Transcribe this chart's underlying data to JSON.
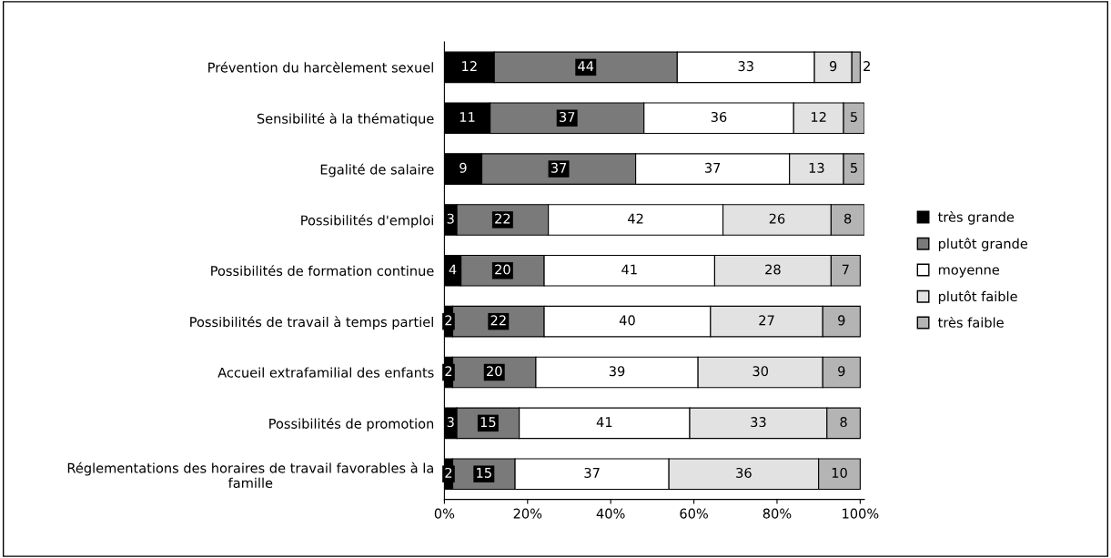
{
  "chart_data": {
    "type": "bar",
    "orientation": "horizontal",
    "stacked": true,
    "data_labels": true,
    "legend": "right",
    "grid": false,
    "categories": [
      "Prévention du harcèlement sexuel",
      "Sensibilité à la thématique",
      "Egalité de salaire",
      "Possibilités d'emploi",
      "Possibilités de formation continue",
      "Possibilités de travail à temps partiel",
      "Accueil extrafamilial des enfants",
      "Possibilités de promotion",
      "Réglementations des horaires de travail favorables à la\nfamille"
    ],
    "series": [
      {
        "name": "très grande",
        "color": "#000000",
        "values": [
          12,
          11,
          9,
          3,
          4,
          2,
          2,
          3,
          2
        ]
      },
      {
        "name": "plutôt grande",
        "color": "#7a7a7a",
        "values": [
          44,
          37,
          37,
          22,
          20,
          22,
          20,
          15,
          15
        ]
      },
      {
        "name": "moyenne",
        "color": "#ffffff",
        "values": [
          33,
          36,
          37,
          42,
          41,
          40,
          39,
          41,
          37
        ]
      },
      {
        "name": "plutôt faible",
        "color": "#e2e2e2",
        "values": [
          9,
          12,
          13,
          26,
          28,
          27,
          30,
          33,
          36
        ]
      },
      {
        "name": "très faible",
        "color": "#b4b4b4",
        "values": [
          2,
          5,
          5,
          8,
          7,
          9,
          9,
          8,
          10
        ]
      }
    ],
    "xlim": [
      0,
      101
    ],
    "xticks": [
      {
        "value": 0,
        "label": "0%"
      },
      {
        "value": 20,
        "label": "20%"
      },
      {
        "value": 40,
        "label": "40%"
      },
      {
        "value": 60,
        "label": "60%"
      },
      {
        "value": 80,
        "label": "80%"
      },
      {
        "value": 100,
        "label": "100%"
      }
    ]
  }
}
